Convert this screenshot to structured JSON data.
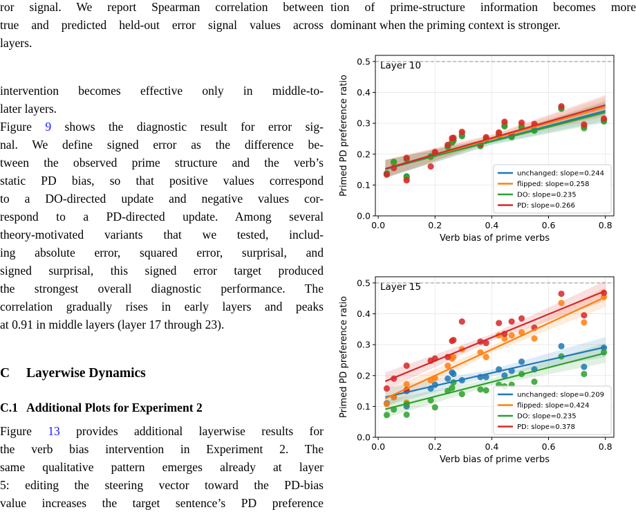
{
  "left_column": {
    "caption_lines": [
      "ror signal.  We report Spearman correlation between",
      "true and predicted held-out error signal values across",
      "layers."
    ],
    "para1_lines": [
      "intervention becomes effective only in middle-to-",
      "later layers."
    ],
    "para2_lines": [
      "Figure 9 shows the diagnostic result for error sig-",
      "nal.  We define signed error as the difference be-",
      "tween the observed prime structure and the verb’s",
      "static PD bias, so that positive values correspond",
      "to a DO-directed update and negative values cor-",
      "respond to a PD-directed update.  Among several",
      "theory-motivated variants that we tested, includ-",
      "ing absolute error, squared error, surprisal, and",
      "signed surprisal, this signed error target produced",
      "the strongest overall diagnostic performance.  The",
      "correlation gradually rises in early layers and peaks",
      "at 0.91 in middle layers (layer 17 through 23)."
    ],
    "section_c": {
      "number": "C",
      "title": "Layerwise Dynamics"
    },
    "section_c1": {
      "number": "C.1",
      "title": "Additional Plots for Experiment 2"
    },
    "para3_lines": [
      "Figure 13 provides additional layerwise results for",
      "the verb bias intervention in Experiment 2.  The",
      "same qualitative pattern emerges already at layer",
      "5:  editing the steering vector toward the PD-bias",
      "value increases the target sentence’s PD preference"
    ]
  },
  "right_column": {
    "top_lines": [
      "tion of prime-structure information becomes more",
      "dominant when the priming context is stronger."
    ]
  },
  "chart_data": [
    {
      "type": "scatter",
      "title": "Layer 10",
      "xlabel": "Verb bias of prime verbs",
      "ylabel": "Primed PD preference ratio",
      "xlim": [
        -0.01,
        0.83
      ],
      "ylim": [
        0.0,
        0.52
      ],
      "xticks": [
        "0.0",
        "0.2",
        "0.4",
        "0.6",
        "0.8"
      ],
      "yticks": [
        "0.0",
        "0.1",
        "0.2",
        "0.3",
        "0.4",
        "0.5"
      ],
      "reference_line": 0.5,
      "grid": true,
      "legend_position": "lower-right",
      "x": [
        0.03,
        0.055,
        0.1,
        0.1,
        0.185,
        0.2,
        0.245,
        0.26,
        0.265,
        0.295,
        0.36,
        0.38,
        0.425,
        0.445,
        0.47,
        0.505,
        0.55,
        0.645,
        0.725,
        0.795
      ],
      "series": [
        {
          "name": "unchanged: slope=0.244",
          "color": "#1f77b4",
          "slope": 0.244,
          "intercept": 0.145,
          "values": [
            0.136,
            0.172,
            0.128,
            0.185,
            0.193,
            0.203,
            0.226,
            0.24,
            0.246,
            0.262,
            0.228,
            0.25,
            0.262,
            0.293,
            0.258,
            0.29,
            0.278,
            0.348,
            0.29,
            0.31
          ]
        },
        {
          "name": "flipped: slope=0.258",
          "color": "#ff7f0e",
          "slope": 0.258,
          "intercept": 0.146,
          "values": [
            0.134,
            0.168,
            0.12,
            0.185,
            0.19,
            0.205,
            0.228,
            0.243,
            0.25,
            0.268,
            0.23,
            0.252,
            0.27,
            0.3,
            0.262,
            0.295,
            0.292,
            0.352,
            0.292,
            0.312
          ]
        },
        {
          "name": "DO: slope=0.235",
          "color": "#2ca02c",
          "slope": 0.235,
          "intercept": 0.147,
          "values": [
            0.138,
            0.175,
            0.127,
            0.183,
            0.192,
            0.201,
            0.223,
            0.237,
            0.243,
            0.258,
            0.226,
            0.249,
            0.26,
            0.29,
            0.255,
            0.286,
            0.276,
            0.347,
            0.284,
            0.306
          ]
        },
        {
          "name": "PD: slope=0.266",
          "color": "#d62728",
          "slope": 0.266,
          "intercept": 0.146,
          "values": [
            0.134,
            0.155,
            0.115,
            0.188,
            0.16,
            0.207,
            0.23,
            0.252,
            0.253,
            0.272,
            0.232,
            0.255,
            0.27,
            0.305,
            0.263,
            0.302,
            0.298,
            0.355,
            0.296,
            0.315
          ]
        }
      ]
    },
    {
      "type": "scatter",
      "title": "Layer 15",
      "xlabel": "Verb bias of prime verbs",
      "ylabel": "Primed PD preference ratio",
      "xlim": [
        -0.01,
        0.83
      ],
      "ylim": [
        0.0,
        0.52
      ],
      "xticks": [
        "0.0",
        "0.2",
        "0.4",
        "0.6",
        "0.8"
      ],
      "yticks": [
        "0.0",
        "0.1",
        "0.2",
        "0.3",
        "0.4",
        "0.5"
      ],
      "reference_line": 0.5,
      "grid": true,
      "legend_position": "lower-right",
      "x": [
        0.03,
        0.055,
        0.1,
        0.1,
        0.185,
        0.2,
        0.245,
        0.26,
        0.265,
        0.295,
        0.36,
        0.38,
        0.425,
        0.445,
        0.47,
        0.505,
        0.55,
        0.645,
        0.725,
        0.795
      ],
      "series": [
        {
          "name": "unchanged: slope=0.209",
          "color": "#1f77b4",
          "slope": 0.209,
          "intercept": 0.125,
          "values": [
            0.11,
            0.13,
            0.1,
            0.15,
            0.158,
            0.17,
            0.19,
            0.21,
            0.205,
            0.185,
            0.195,
            0.195,
            0.22,
            0.2,
            0.215,
            0.245,
            0.22,
            0.295,
            0.228,
            0.29
          ]
        },
        {
          "name": "flipped: slope=0.424",
          "color": "#ff7f0e",
          "slope": 0.424,
          "intercept": 0.115,
          "values": [
            0.108,
            0.13,
            0.112,
            0.172,
            0.185,
            0.192,
            0.232,
            0.255,
            0.26,
            0.285,
            0.275,
            0.26,
            0.33,
            0.32,
            0.33,
            0.34,
            0.32,
            0.435,
            0.372,
            0.455
          ]
        },
        {
          "name": "DO: slope=0.235",
          "color": "#2ca02c",
          "slope": 0.235,
          "intercept": 0.085,
          "values": [
            0.072,
            0.09,
            0.073,
            0.108,
            0.12,
            0.097,
            0.15,
            0.16,
            0.178,
            0.14,
            0.155,
            0.152,
            0.17,
            0.165,
            0.17,
            0.205,
            0.18,
            0.262,
            0.205,
            0.275
          ]
        },
        {
          "name": "PD: slope=0.378",
          "color": "#d62728",
          "slope": 0.378,
          "intercept": 0.172,
          "values": [
            0.158,
            0.19,
            0.153,
            0.232,
            0.248,
            0.255,
            0.26,
            0.312,
            0.315,
            0.375,
            0.31,
            0.305,
            0.37,
            0.335,
            0.375,
            0.385,
            0.355,
            0.465,
            0.395,
            0.468
          ]
        }
      ]
    }
  ]
}
